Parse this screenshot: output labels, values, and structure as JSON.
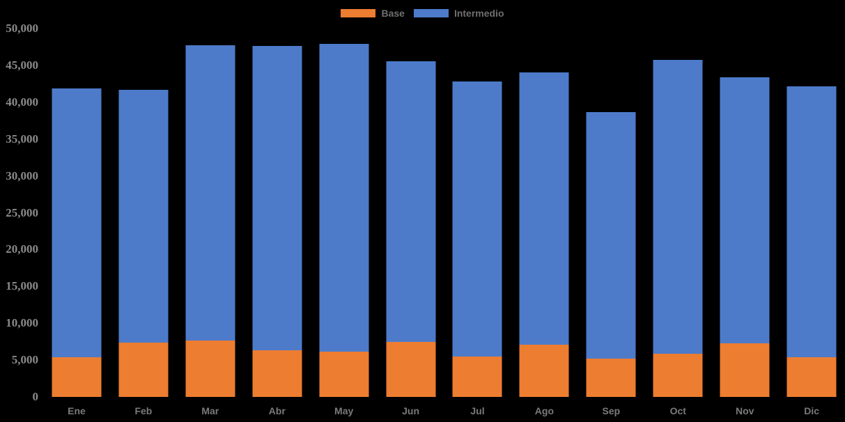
{
  "chart_data": {
    "type": "bar",
    "stacked": true,
    "title": "",
    "xlabel": "",
    "ylabel": "",
    "categories": [
      "Ene",
      "Feb",
      "Mar",
      "Abr",
      "May",
      "Jun",
      "Jul",
      "Ago",
      "Sep",
      "Oct",
      "Nov",
      "Dic"
    ],
    "series": [
      {
        "name": "Base",
        "color": "#ED7D31",
        "values": [
          5400,
          7400,
          7700,
          6300,
          6100,
          7500,
          5500,
          7100,
          5200,
          5900,
          7300,
          5400
        ]
      },
      {
        "name": "Intermedio",
        "color": "#4D7BCA",
        "values": [
          36500,
          34300,
          40100,
          41300,
          41800,
          38100,
          37300,
          37000,
          33500,
          39900,
          36100,
          36800
        ]
      }
    ],
    "totals": [
      41900,
      41700,
      47800,
      47600,
      47900,
      45600,
      42800,
      44100,
      38700,
      45800,
      43400,
      42200
    ],
    "ylim": [
      0,
      50000
    ],
    "ytick_step": 5000,
    "ytick_labels": [
      "0",
      "5,000",
      "10,000",
      "15,000",
      "20,000",
      "25,000",
      "30,000",
      "35,000",
      "40,000",
      "45,000",
      "50,000"
    ],
    "legend_position": "top-center",
    "grid": false,
    "background_color": "#000000",
    "axis_text_color": "#8a8a8a",
    "category_text_color": "#7a7a7a",
    "legend_text_color": "#6f6f6f"
  }
}
